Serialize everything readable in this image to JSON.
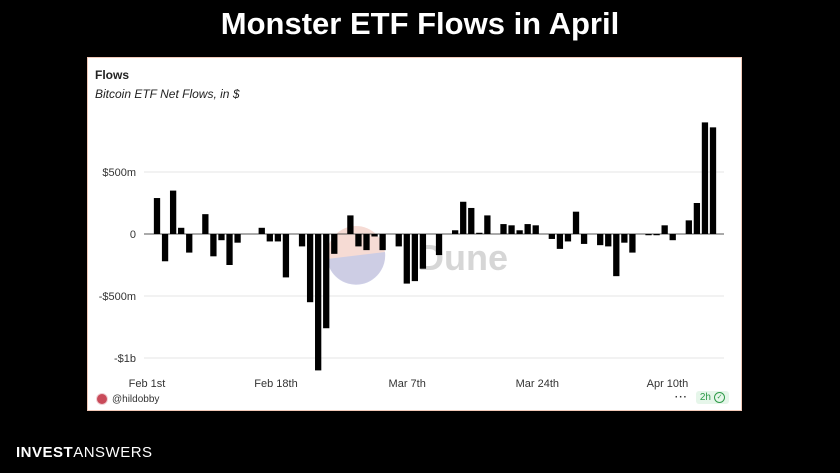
{
  "headline": "Monster ETF Flows in April",
  "card": {
    "title": "Flows",
    "subtitle": "Bitcoin ETF Net Flows, in $",
    "watermark": "Dune",
    "author": "@hildobby",
    "more_label": "···",
    "refresh_badge": "2h"
  },
  "brand": {
    "bold": "INVEST",
    "light": "ANSWERS"
  },
  "chart_data": {
    "type": "bar",
    "title": "Flows",
    "subtitle": "Bitcoin ETF Net Flows, in $",
    "xlabel": "",
    "ylabel": "",
    "ylim": [
      -1100000000,
      900000000
    ],
    "y_ticks": [
      {
        "value": 500000000,
        "label": "$500m"
      },
      {
        "value": 0,
        "label": "0"
      },
      {
        "value": -500000000,
        "label": "-$500m"
      },
      {
        "value": -1000000000,
        "label": "-$1b"
      }
    ],
    "x_ticks": [
      "Feb 1st",
      "Feb 18th",
      "Mar 7th",
      "Mar 24th",
      "Apr 10th"
    ],
    "grid": true,
    "bar_color": "#000000",
    "values": [
      290000000,
      -220000000,
      350000000,
      50000000,
      -150000000,
      0,
      160000000,
      -180000000,
      -50000000,
      -250000000,
      -70000000,
      0,
      0,
      50000000,
      -60000000,
      -60000000,
      -350000000,
      0,
      -100000000,
      -550000000,
      -1100000000,
      -760000000,
      -160000000,
      0,
      150000000,
      -100000000,
      -130000000,
      -20000000,
      -130000000,
      0,
      -100000000,
      -400000000,
      -380000000,
      -280000000,
      0,
      -170000000,
      0,
      30000000,
      260000000,
      210000000,
      10000000,
      150000000,
      0,
      80000000,
      70000000,
      30000000,
      80000000,
      70000000,
      0,
      -40000000,
      -120000000,
      -60000000,
      180000000,
      -80000000,
      0,
      -90000000,
      -100000000,
      -340000000,
      -70000000,
      -150000000,
      0,
      -10000000,
      -10000000,
      70000000,
      -50000000,
      0,
      110000000,
      250000000,
      900000000,
      860000000
    ]
  }
}
